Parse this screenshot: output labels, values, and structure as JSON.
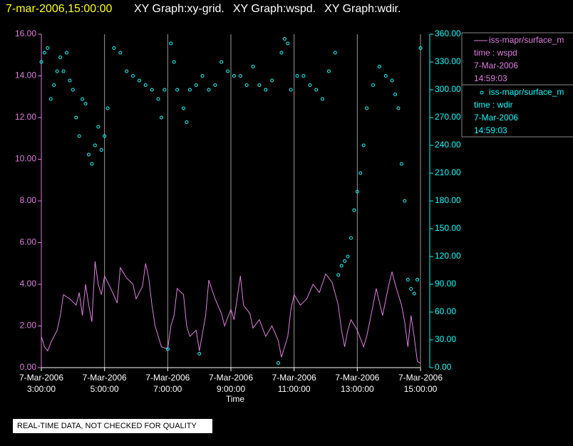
{
  "chart_data": {
    "type": "xy",
    "timestamp": "7-mar-2006,15:00:00",
    "graphs": [
      "XY Graph:xy-grid.",
      "XY Graph:wspd.",
      "XY Graph:wdir."
    ],
    "xlabel": "Time",
    "note": "REAL-TIME DATA, NOT CHECKED FOR QUALITY",
    "grid": true,
    "xlim": [
      3,
      15
    ],
    "xticks": [
      {
        "value": 3,
        "label": "7-Mar-2006\n3:00:00"
      },
      {
        "value": 5,
        "label": "7-Mar-2006\n5:00:00"
      },
      {
        "value": 7,
        "label": "7-Mar-2006\n7:00:00"
      },
      {
        "value": 9,
        "label": "7-Mar-2006\n9:00:00"
      },
      {
        "value": 11,
        "label": "7-Mar-2006\n11:00:00"
      },
      {
        "value": 13,
        "label": "7-Mar-2006\n13:00:00"
      },
      {
        "value": 15,
        "label": "7-Mar-2006\n15:00:00"
      }
    ],
    "ylim": [
      0,
      16
    ],
    "yticks": [
      {
        "value": 0,
        "label": "0.00"
      },
      {
        "value": 2,
        "label": "2.00"
      },
      {
        "value": 4,
        "label": "4.00"
      },
      {
        "value": 6,
        "label": "6.00"
      },
      {
        "value": 8,
        "label": "8.00"
      },
      {
        "value": 10,
        "label": "10.00"
      },
      {
        "value": 12,
        "label": "12.00"
      },
      {
        "value": 14,
        "label": "14.00"
      },
      {
        "value": 16,
        "label": "16.00"
      }
    ],
    "y2lim": [
      0,
      360
    ],
    "y2ticks": [
      {
        "value": 0,
        "label": "0.00"
      },
      {
        "value": 30,
        "label": "30.00"
      },
      {
        "value": 60,
        "label": "60.00"
      },
      {
        "value": 90,
        "label": "90.00"
      },
      {
        "value": 120,
        "label": "120.00"
      },
      {
        "value": 150,
        "label": "150.00"
      },
      {
        "value": 180,
        "label": "180.00"
      },
      {
        "value": 210,
        "label": "210.00"
      },
      {
        "value": 240,
        "label": "240.00"
      },
      {
        "value": 270,
        "label": "270.00"
      },
      {
        "value": 300,
        "label": "300.00"
      },
      {
        "value": 330,
        "label": "330.00"
      },
      {
        "value": 360,
        "label": "360.00"
      }
    ],
    "series": [
      {
        "name": "iss-mapr/surface_m",
        "legend_lines": [
          "time : wspd",
          "7-Mar-2006",
          "14:59:03"
        ],
        "type": "line",
        "color": "#e07ee0",
        "x": [
          3.0,
          3.1,
          3.2,
          3.3,
          3.5,
          3.6,
          3.7,
          3.9,
          4.1,
          4.2,
          4.3,
          4.4,
          4.5,
          4.6,
          4.7,
          4.8,
          4.9,
          5.0,
          5.2,
          5.4,
          5.5,
          5.7,
          5.9,
          6.0,
          6.2,
          6.3,
          6.4,
          6.5,
          6.6,
          6.8,
          7.0,
          7.1,
          7.2,
          7.3,
          7.5,
          7.6,
          7.7,
          7.9,
          8.0,
          8.2,
          8.3,
          8.5,
          8.7,
          8.8,
          9.0,
          9.1,
          9.3,
          9.4,
          9.6,
          9.7,
          9.9,
          10.1,
          10.3,
          10.5,
          10.6,
          10.8,
          10.9,
          11.0,
          11.2,
          11.4,
          11.6,
          11.8,
          12.0,
          12.2,
          12.4,
          12.5,
          12.6,
          12.7,
          12.8,
          13.0,
          13.2,
          13.3,
          13.5,
          13.6,
          13.8,
          14.0,
          14.1,
          14.2,
          14.4,
          14.5,
          14.6,
          14.7,
          14.8,
          14.9,
          15.0
        ],
        "values": [
          1.5,
          1.0,
          0.8,
          1.2,
          1.8,
          2.5,
          3.5,
          3.3,
          3.0,
          3.6,
          2.5,
          4.0,
          3.0,
          2.2,
          5.1,
          4.0,
          3.5,
          4.4,
          3.8,
          3.1,
          4.8,
          4.3,
          4.0,
          3.3,
          3.9,
          5.0,
          4.3,
          3.0,
          2.0,
          1.0,
          0.9,
          2.0,
          2.5,
          3.8,
          3.5,
          2.0,
          1.5,
          1.8,
          0.8,
          2.5,
          4.2,
          3.3,
          2.6,
          2.0,
          2.8,
          2.3,
          4.4,
          3.0,
          2.6,
          1.9,
          2.3,
          1.5,
          2.0,
          1.3,
          0.5,
          1.5,
          2.8,
          3.5,
          3.0,
          3.3,
          4.0,
          3.6,
          4.5,
          4.1,
          3.0,
          1.8,
          1.0,
          1.8,
          2.3,
          1.8,
          1.0,
          1.5,
          3.0,
          3.8,
          2.5,
          4.0,
          4.6,
          4.0,
          3.0,
          2.2,
          1.0,
          2.5,
          1.5,
          0.3,
          0.2
        ]
      },
      {
        "name": "iss-mapr/surface_m",
        "legend_lines": [
          "time : wdir",
          "7-Mar-2006",
          "14:59:03"
        ],
        "type": "scatter",
        "color": "#00ffff",
        "axis": "y2",
        "x": [
          3.0,
          3.1,
          3.2,
          3.3,
          3.4,
          3.5,
          3.6,
          3.7,
          3.8,
          3.9,
          4.0,
          4.1,
          4.2,
          4.3,
          4.4,
          4.5,
          4.6,
          4.7,
          4.8,
          4.9,
          5.0,
          5.1,
          5.3,
          5.5,
          5.7,
          5.9,
          6.1,
          6.3,
          6.5,
          6.7,
          6.8,
          6.9,
          7.0,
          7.1,
          7.2,
          7.3,
          7.5,
          7.6,
          7.7,
          7.9,
          8.0,
          8.1,
          8.3,
          8.5,
          8.7,
          8.9,
          9.1,
          9.3,
          9.5,
          9.7,
          9.9,
          10.1,
          10.3,
          10.5,
          10.6,
          10.7,
          10.8,
          10.9,
          11.1,
          11.3,
          11.5,
          11.7,
          11.9,
          12.1,
          12.3,
          12.4,
          12.5,
          12.6,
          12.7,
          12.8,
          12.9,
          13.0,
          13.1,
          13.2,
          13.3,
          13.5,
          13.7,
          13.9,
          14.1,
          14.2,
          14.3,
          14.4,
          14.5,
          14.6,
          14.7,
          14.8,
          14.9,
          15.0
        ],
        "values": [
          330,
          340,
          345,
          290,
          305,
          320,
          335,
          320,
          340,
          310,
          300,
          270,
          250,
          290,
          285,
          230,
          220,
          240,
          260,
          235,
          250,
          280,
          345,
          340,
          320,
          315,
          310,
          305,
          300,
          290,
          270,
          300,
          20,
          350,
          330,
          300,
          280,
          265,
          300,
          305,
          15,
          315,
          300,
          305,
          330,
          320,
          315,
          315,
          305,
          325,
          305,
          300,
          310,
          5,
          340,
          355,
          350,
          300,
          315,
          315,
          305,
          300,
          290,
          320,
          340,
          100,
          110,
          115,
          120,
          140,
          170,
          190,
          210,
          240,
          280,
          305,
          325,
          315,
          310,
          295,
          280,
          220,
          180,
          95,
          85,
          80,
          95,
          345
        ]
      }
    ]
  }
}
